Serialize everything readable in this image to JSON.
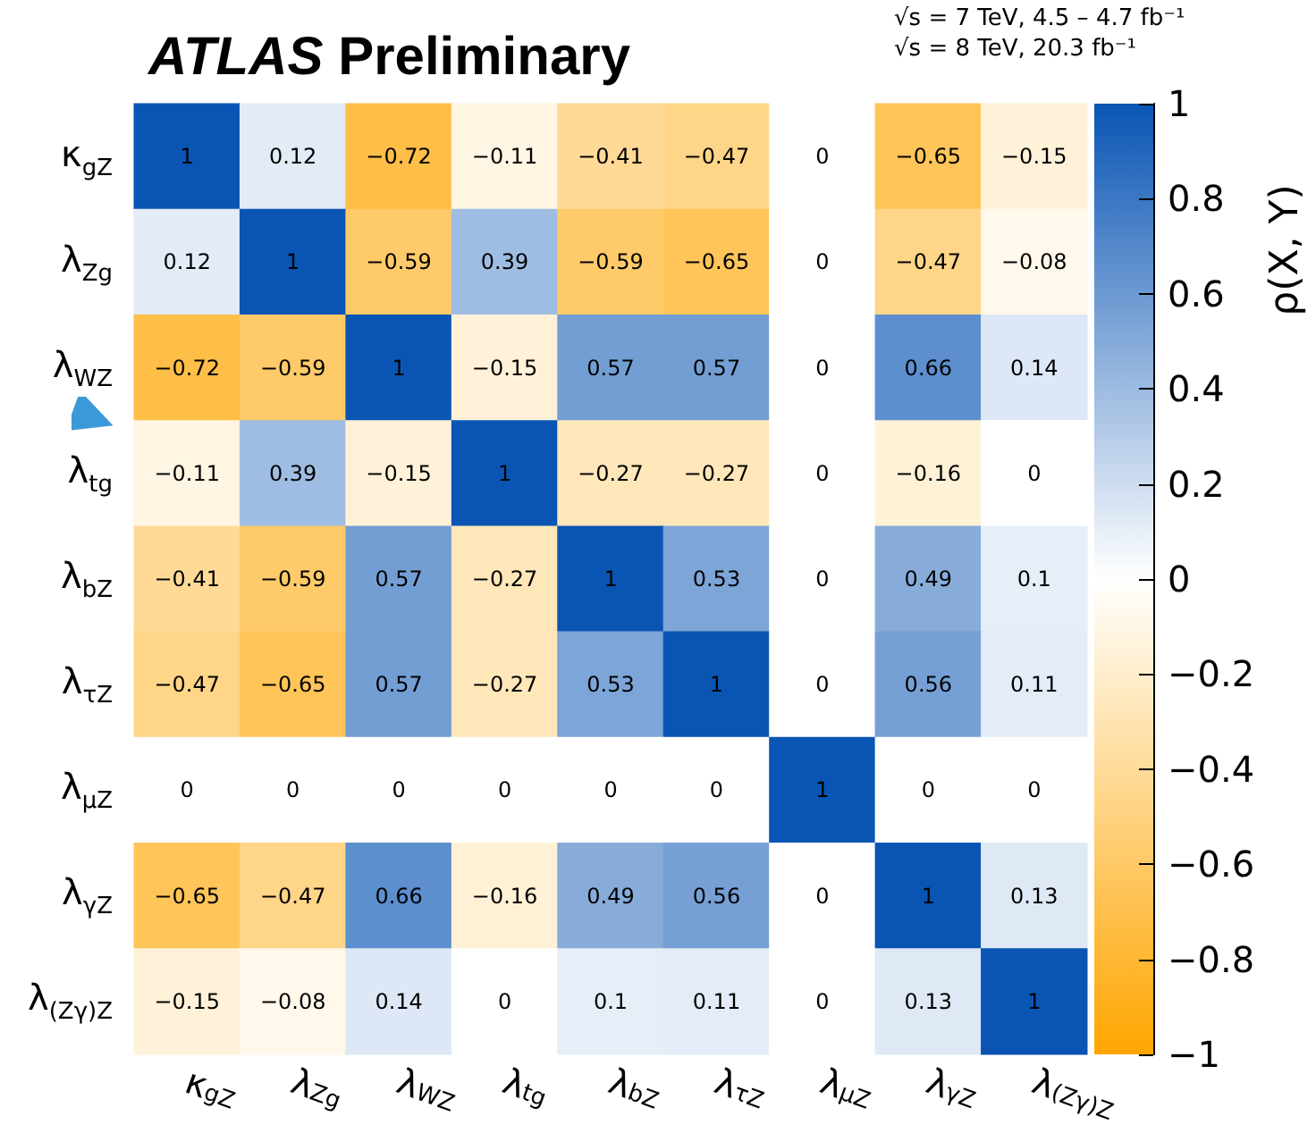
{
  "chart_data": {
    "type": "heatmap",
    "title": "ATLAS Preliminary",
    "annotations": [
      "√s = 7 TeV, 4.5 – 4.7 fb⁻¹",
      "√s = 8 TeV, 20.3 fb⁻¹"
    ],
    "categories": [
      "κ$_{gZ}$",
      "λ$_{Zg}$",
      "λ$_{WZ}$",
      "λ$_{tg}$",
      "λ$_{bZ}$",
      "λ$_{τZ}$",
      "λ$_{μZ}$",
      "λ$_{γZ}$",
      "λ$_{(Zγ)Z}$"
    ],
    "y_categories": [
      "κ$_{gZ}$",
      "λ$_{Zg}$",
      "λ$_{WZ}$",
      "λ$_{tg}$",
      "λ$_{bZ}$",
      "λ$_{τZ}$",
      "λ$_{μZ}$",
      "λ$_{γZ}$",
      "λ$_{(Zγ)Z}$"
    ],
    "cells": [
      [
        1,
        0.12,
        -0.72,
        -0.11,
        -0.41,
        -0.47,
        0,
        -0.65,
        -0.15
      ],
      [
        0.12,
        1,
        -0.59,
        0.39,
        -0.59,
        -0.65,
        0,
        -0.47,
        -0.08
      ],
      [
        -0.72,
        -0.59,
        1,
        -0.15,
        0.57,
        0.57,
        0,
        0.66,
        0.14
      ],
      [
        -0.11,
        0.39,
        -0.15,
        1,
        -0.27,
        -0.27,
        0,
        -0.16,
        0
      ],
      [
        -0.41,
        -0.59,
        0.57,
        -0.27,
        1,
        0.53,
        0,
        0.49,
        0.1
      ],
      [
        -0.47,
        -0.65,
        0.57,
        -0.27,
        0.53,
        1,
        0,
        0.56,
        0.11
      ],
      [
        0,
        0,
        0,
        0,
        0,
        0,
        1,
        0,
        0
      ],
      [
        -0.65,
        -0.47,
        0.66,
        -0.16,
        0.49,
        0.56,
        0,
        1,
        0.13
      ],
      [
        -0.15,
        -0.08,
        0.14,
        0,
        0.1,
        0.11,
        0,
        0.13,
        1
      ]
    ],
    "data_labels": true,
    "clabel": "ρ(X, Y)",
    "clim": [
      -1,
      1
    ],
    "cticks": [
      {
        "value": -1,
        "label": "−1"
      },
      {
        "value": -0.8,
        "label": "−0.8"
      },
      {
        "value": -0.6,
        "label": "−0.6"
      },
      {
        "value": -0.4,
        "label": "−0.4"
      },
      {
        "value": -0.2,
        "label": "−0.2"
      },
      0,
      0.2,
      0.4,
      0.6,
      0.8,
      1
    ]
  }
}
